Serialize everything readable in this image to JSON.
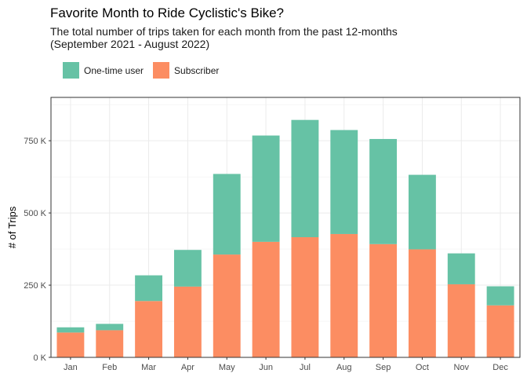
{
  "title": "Favorite Month to Ride Cyclistic's Bike?",
  "subtitle_line1": "The total number of trips taken for each month from the past 12-months",
  "subtitle_line2": "(September 2021 - August 2022)",
  "colors": {
    "one_time": "#66c2a5",
    "subscriber": "#fc8d62"
  },
  "chart_data": {
    "type": "bar",
    "stacked": true,
    "categories": [
      "Jan",
      "Feb",
      "Mar",
      "Apr",
      "May",
      "Jun",
      "Jul",
      "Aug",
      "Sep",
      "Oct",
      "Nov",
      "Dec"
    ],
    "series": [
      {
        "name": "One-time user",
        "values": [
          18000,
          22000,
          89000,
          127000,
          279000,
          368000,
          406000,
          360000,
          364000,
          258000,
          107000,
          66000
        ]
      },
      {
        "name": "Subscriber",
        "values": [
          86000,
          94000,
          195000,
          245000,
          356000,
          400000,
          416000,
          427000,
          392000,
          374000,
          253000,
          180000
        ]
      }
    ],
    "xlabel": "",
    "ylabel": "# of Trips",
    "ylim": [
      0,
      900000
    ],
    "yticks": [
      0,
      250000,
      500000,
      750000
    ],
    "ytick_labels": [
      "0 K",
      "250 K",
      "500 K",
      "750 K"
    ],
    "grid": true,
    "legend_position": "top-left"
  }
}
